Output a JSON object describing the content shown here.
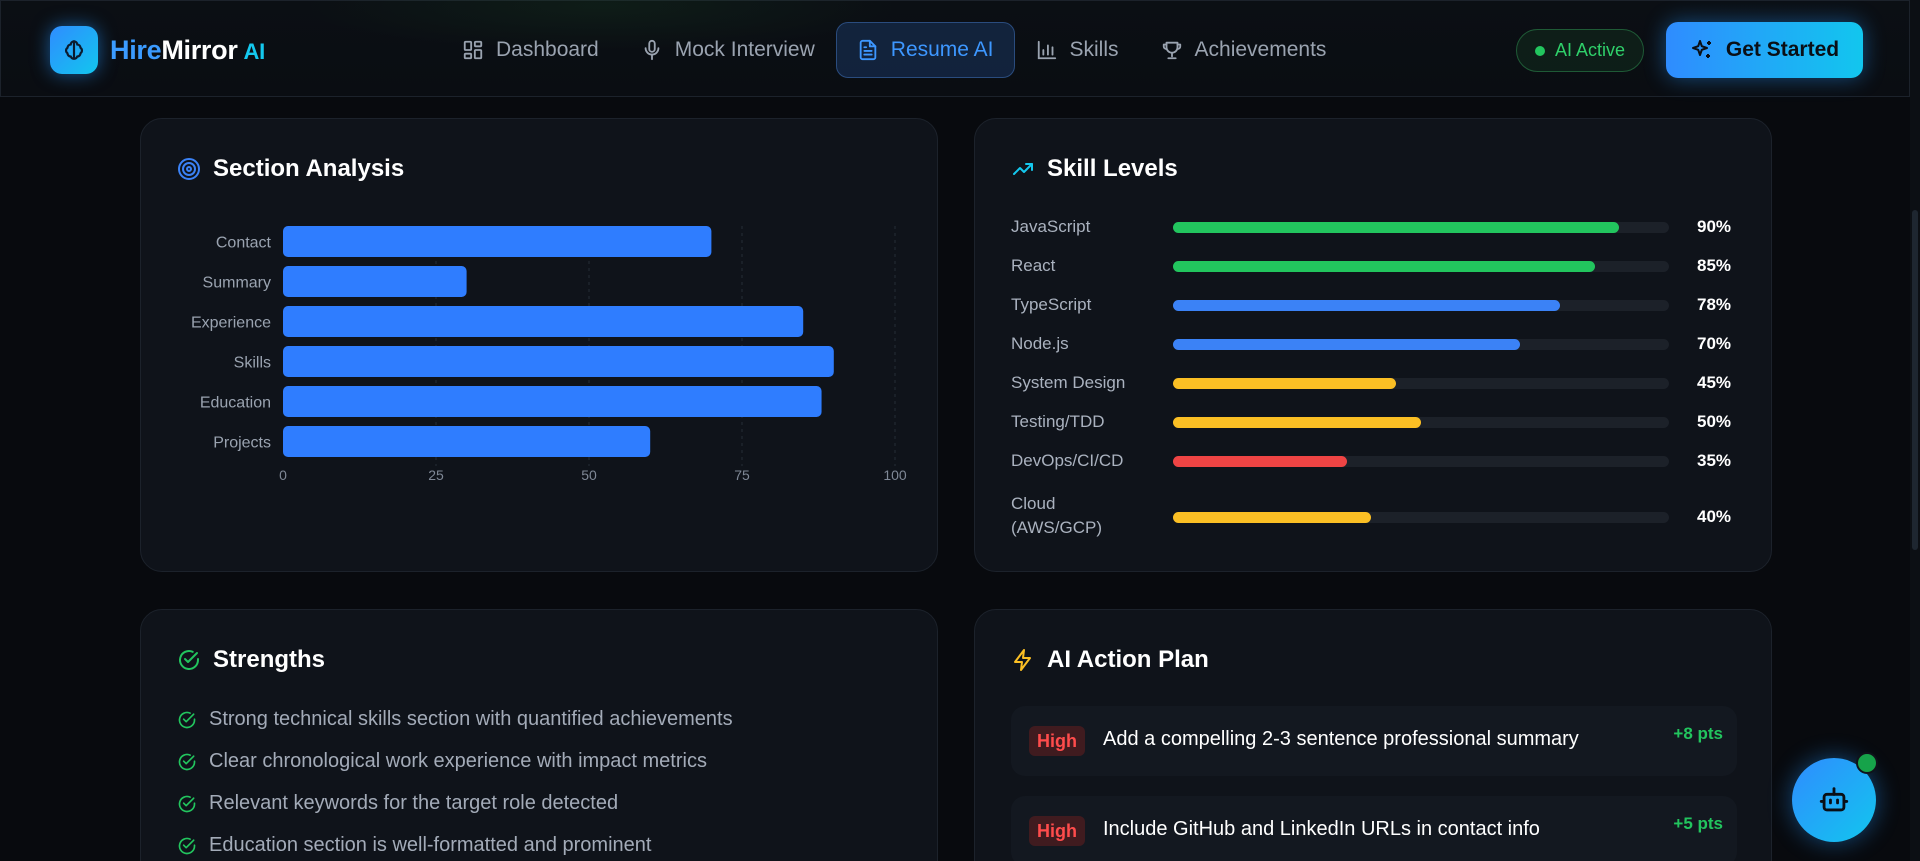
{
  "brand": {
    "part1": "Hire",
    "part2": "Mirror",
    "suffix": "AI"
  },
  "nav": {
    "items": [
      {
        "label": "Dashboard",
        "icon": "dashboard-icon"
      },
      {
        "label": "Mock Interview",
        "icon": "microphone-icon"
      },
      {
        "label": "Resume AI",
        "icon": "document-icon",
        "active": true
      },
      {
        "label": "Skills",
        "icon": "bar-chart-icon"
      },
      {
        "label": "Achievements",
        "icon": "trophy-icon"
      }
    ],
    "status_label": "AI Active",
    "cta_label": "Get Started"
  },
  "section_analysis": {
    "title": "Section Analysis",
    "chart_data": {
      "type": "bar",
      "orientation": "horizontal",
      "categories": [
        "Contact",
        "Summary",
        "Experience",
        "Skills",
        "Education",
        "Projects"
      ],
      "values": [
        70,
        30,
        85,
        90,
        88,
        60
      ],
      "xlim": [
        0,
        100
      ],
      "xticks": [
        "0",
        "25",
        "50",
        "75",
        "100"
      ],
      "color": "#2f7dff",
      "grid": "vertical-dashed"
    }
  },
  "skill_levels": {
    "title": "Skill Levels",
    "items": [
      {
        "name": "JavaScript",
        "value": 90,
        "pct": "90%",
        "color": "#22c55e"
      },
      {
        "name": "React",
        "value": 85,
        "pct": "85%",
        "color": "#22c55e"
      },
      {
        "name": "TypeScript",
        "value": 78,
        "pct": "78%",
        "color": "#3b82f6"
      },
      {
        "name": "Node.js",
        "value": 70,
        "pct": "70%",
        "color": "#3b82f6"
      },
      {
        "name": "System Design",
        "value": 45,
        "pct": "45%",
        "color": "#fbbf24"
      },
      {
        "name": "Testing/TDD",
        "value": 50,
        "pct": "50%",
        "color": "#fbbf24"
      },
      {
        "name": "DevOps/CI/CD",
        "value": 35,
        "pct": "35%",
        "color": "#ef4444"
      },
      {
        "name": "Cloud (AWS/GCP)",
        "value": 40,
        "pct": "40%",
        "color": "#fbbf24"
      }
    ]
  },
  "strengths": {
    "title": "Strengths",
    "items": [
      "Strong technical skills section with quantified achievements",
      "Clear chronological work experience with impact metrics",
      "Relevant keywords for the target role detected",
      "Education section is well-formatted and prominent"
    ]
  },
  "action_plan": {
    "title": "AI Action Plan",
    "items": [
      {
        "priority": "High",
        "text": "Add a compelling 2-3 sentence professional summary",
        "points": "+8 pts"
      },
      {
        "priority": "High",
        "text": "Include GitHub and LinkedIn URLs in contact info",
        "points": "+5 pts"
      }
    ]
  }
}
